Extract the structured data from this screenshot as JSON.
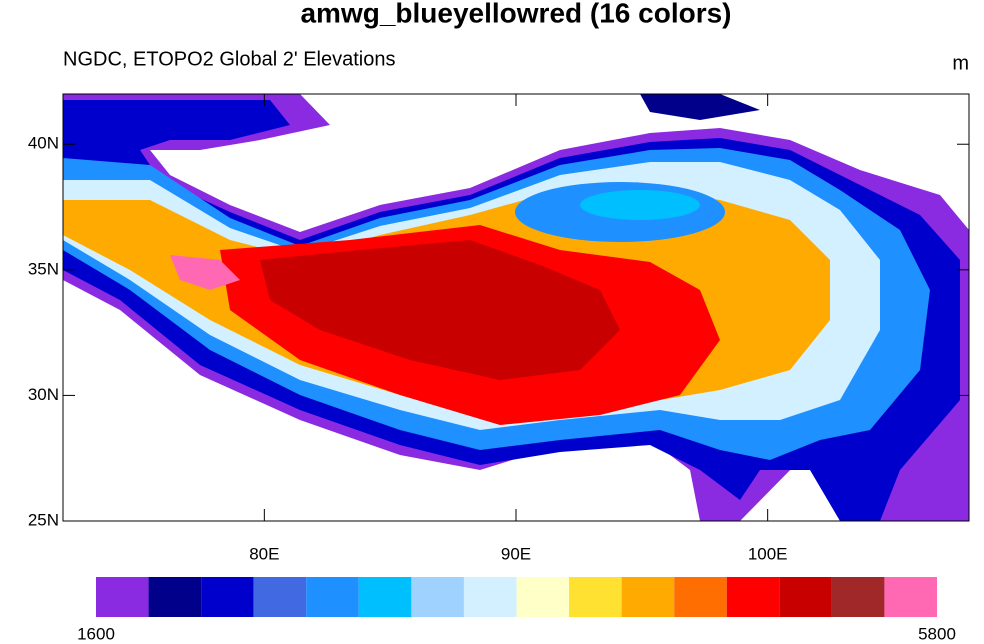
{
  "header": {
    "title": "amwg_blueyellowred (16 colors)",
    "left": "NGDC, ETOPO2 Global 2' Elevations",
    "right": "m"
  },
  "map": {
    "lonlim": [
      72,
      108
    ],
    "latlim": [
      25,
      42
    ],
    "lat_ticks": [
      {
        "value": 25,
        "label": "25N"
      },
      {
        "value": 30,
        "label": "30N"
      },
      {
        "value": 35,
        "label": "35N"
      },
      {
        "value": 40,
        "label": "40N"
      }
    ],
    "lon_ticks": [
      {
        "value": 80,
        "label": "80E"
      },
      {
        "value": 90,
        "label": "90E"
      },
      {
        "value": 100,
        "label": "100E"
      }
    ]
  },
  "colorbar": {
    "colors": [
      "#8a2be2",
      "#00008b",
      "#0000cd",
      "#4169e1",
      "#1e90ff",
      "#00bfff",
      "#a0d2ff",
      "#d2f0ff",
      "#ffffc8",
      "#ffe132",
      "#ffaa00",
      "#ff6e00",
      "#ff0000",
      "#c80000",
      "#a02828",
      "#ff69b4"
    ],
    "labels": [
      1600,
      5800
    ]
  }
}
